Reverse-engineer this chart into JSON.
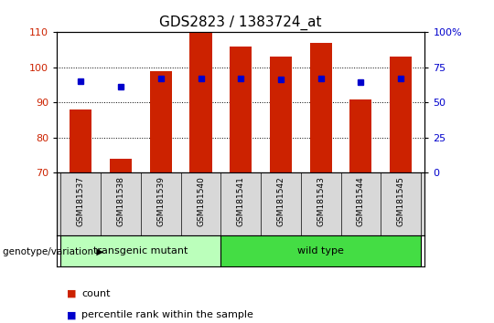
{
  "title": "GDS2823 / 1383724_at",
  "samples": [
    "GSM181537",
    "GSM181538",
    "GSM181539",
    "GSM181540",
    "GSM181541",
    "GSM181542",
    "GSM181543",
    "GSM181544",
    "GSM181545"
  ],
  "counts": [
    88,
    74,
    99,
    110,
    106,
    103,
    107,
    91,
    103
  ],
  "percentile_left_axis": [
    96.0,
    94.5,
    96.8,
    96.8,
    96.8,
    96.5,
    96.8,
    95.8,
    96.8
  ],
  "ylim": [
    70,
    110
  ],
  "yticks_left": [
    70,
    80,
    90,
    100,
    110
  ],
  "yticks_right_labels": [
    "0",
    "25",
    "50",
    "75",
    "100%"
  ],
  "yticks_right_vals": [
    0,
    25,
    50,
    75,
    100
  ],
  "bar_color": "#cc2200",
  "dot_color": "#0000cc",
  "bar_width": 0.55,
  "transgenic_color": "#bbffbb",
  "wildtype_color": "#44dd44",
  "transgenic_label": "transgenic mutant",
  "wildtype_label": "wild type",
  "group_label": "genotype/variation",
  "legend_count_label": "count",
  "legend_pct_label": "percentile rank within the sample",
  "title_fontsize": 11,
  "left_tick_color": "#cc2200",
  "right_tick_color": "#0000cc"
}
